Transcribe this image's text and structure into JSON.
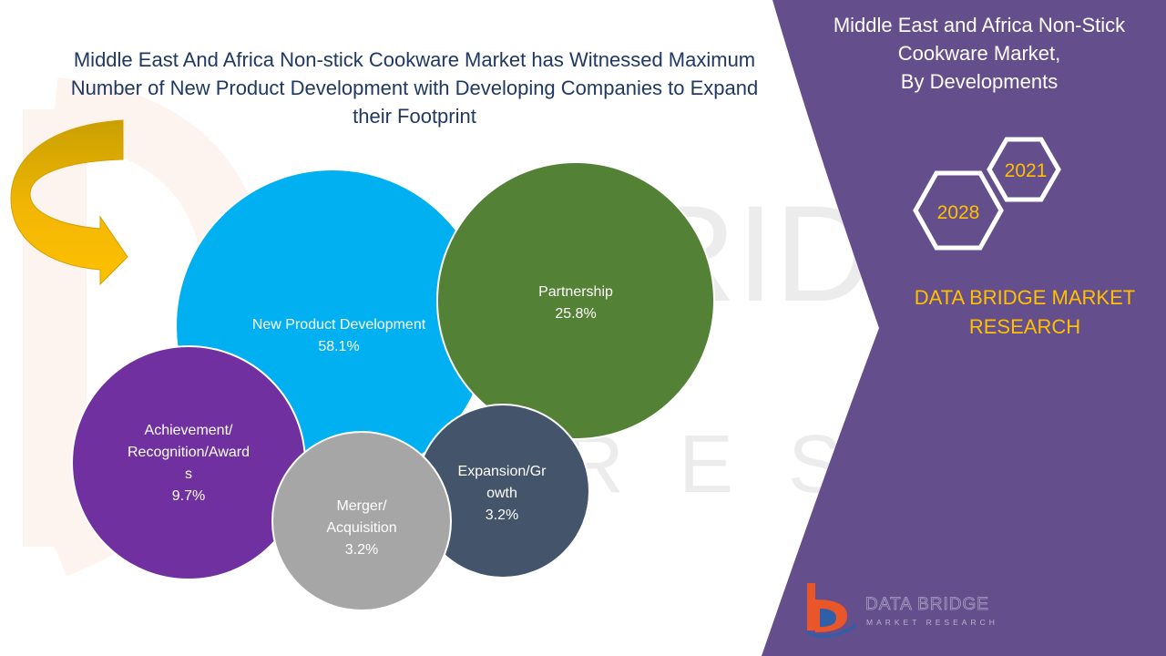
{
  "headline": {
    "line1": "Middle East And Africa Non-stick Cookware Market has Witnessed Maximum",
    "line2": "Number of New Product Development with Developing Companies to Expand",
    "line3": "their Footprint"
  },
  "side_panel": {
    "title_line1": "Middle East and Africa Non-Stick",
    "title_line2": "Cookware Market,",
    "title_line3": "By Developments",
    "year_start": "2021",
    "year_end": "2028",
    "brand_line1": "DATA BRIDGE MARKET",
    "brand_line2": "RESEARCH"
  },
  "logo": {
    "name": "DATA BRIDGE",
    "sub": "MARKET RESEARCH"
  },
  "colors": {
    "panel": "#644e8b",
    "brand_text": "#ffc000",
    "headline_text": "#1f3864",
    "arrow": "#f4b400"
  },
  "chart_data": {
    "type": "bubble",
    "title": "",
    "unit": "%",
    "slices": [
      {
        "label_lines": [
          "New Product Development"
        ],
        "value": 58.1,
        "color": "#00b0f0"
      },
      {
        "label_lines": [
          "Partnership"
        ],
        "value": 25.8,
        "color": "#538135"
      },
      {
        "label_lines": [
          "Achievement/",
          "Recognition/Award",
          "s"
        ],
        "value": 9.7,
        "color": "#7030a0"
      },
      {
        "label_lines": [
          "Expansion/Gr",
          "owth"
        ],
        "value": 3.2,
        "color": "#44546a"
      },
      {
        "label_lines": [
          "Merger/",
          "Acquisition"
        ],
        "value": 3.2,
        "color": "#a6a6a6"
      }
    ]
  }
}
